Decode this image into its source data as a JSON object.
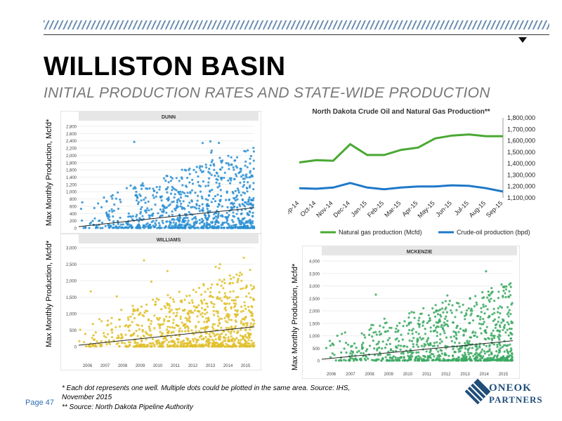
{
  "header": {
    "title": "WILLISTON BASIN",
    "subtitle": "INITIAL PRODUCTION RATES AND STATE-WIDE PRODUCTION"
  },
  "charts": {
    "dunn": {
      "title": "DUNN",
      "ylabel": "Max Monthly Production, Mcfd*",
      "yticks": [
        "2,800",
        "2,600",
        "2,400",
        "2,200",
        "2,000",
        "1,800",
        "1,600",
        "1,400",
        "1,200",
        "1,000",
        "800",
        "600",
        "400",
        "200",
        "0"
      ],
      "ymax": 2800,
      "color": "#2a8fd4"
    },
    "williams": {
      "title": "WILLIAMS",
      "ylabel": "Max Monthly Production, Mcfd*",
      "yticks": [
        "3,000",
        "2,500",
        "2,000",
        "1,500",
        "1,000",
        "500",
        "0"
      ],
      "xticks": [
        "2006",
        "2007",
        "2008",
        "2009",
        "2010",
        "2011",
        "2012",
        "2013",
        "2014",
        "2015"
      ],
      "ymax": 3000,
      "color": "#e0c02a"
    },
    "mckenzie": {
      "title": "MCKENZIE",
      "ylabel": "Max Monthly Production, Mcfd*",
      "yticks": [
        "4,000",
        "3,500",
        "3,000",
        "2,500",
        "2,000",
        "1,500",
        "1,000",
        "500",
        "0"
      ],
      "xticks": [
        "2006",
        "2007",
        "2008",
        "2009",
        "2010",
        "2011",
        "2012",
        "2013",
        "2014",
        "2015"
      ],
      "ymax": 4000,
      "color": "#3aa860"
    }
  },
  "chart_data": {
    "type": "line",
    "title": "North Dakota Crude Oil and Natural Gas Production**",
    "categories": [
      "Sep-14",
      "Oct-14",
      "Nov-14",
      "Dec-14",
      "Jan-15",
      "Feb-15",
      "Mar-15",
      "Apr-15",
      "May-15",
      "Jun-15",
      "Jul-15",
      "Aug-15",
      "Sep-15"
    ],
    "yticks": [
      "1,800,000",
      "1,700,000",
      "1,600,000",
      "1,500,000",
      "1,400,000",
      "1,300,000",
      "1,200,000",
      "1,100,000"
    ],
    "ylim": [
      1100000,
      1800000
    ],
    "series": [
      {
        "name": "Natural gas production (Mcfd)",
        "color": "#4aa832",
        "values": [
          1410000,
          1430000,
          1425000,
          1570000,
          1475000,
          1475000,
          1520000,
          1540000,
          1620000,
          1645000,
          1655000,
          1640000,
          1640000
        ]
      },
      {
        "name": "Crude-oil production (bpd)",
        "color": "#1f78c8",
        "values": [
          1185000,
          1180000,
          1190000,
          1230000,
          1190000,
          1175000,
          1190000,
          1200000,
          1200000,
          1210000,
          1205000,
          1185000,
          1155000
        ]
      }
    ]
  },
  "footnotes": {
    "line1": "* Each dot represents one well. Multiple dots could be plotted in the same area. Source: IHS,",
    "line2": "November 2015",
    "line3": "** Source: North Dakota Pipeline Authority"
  },
  "page_label": "Page 47",
  "logo": {
    "line1": "ONEOK",
    "line2": "PARTNERS"
  }
}
